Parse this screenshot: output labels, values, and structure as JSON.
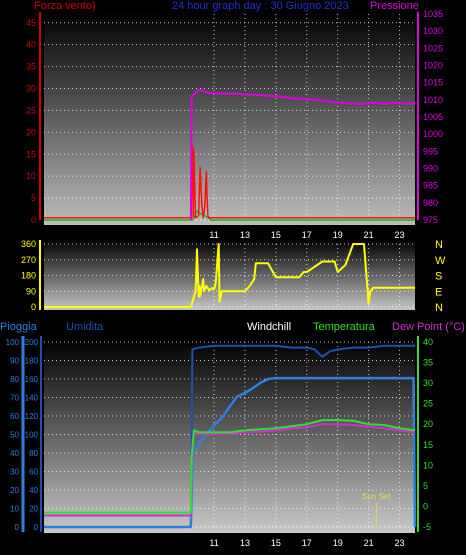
{
  "header": {
    "left_label": "Forza vento)",
    "center_label": "24 hour graph day : 30 Giugno 2023",
    "right_label": "Pressione"
  },
  "bottom_header": {
    "pioggia": "Pioggia",
    "umidita": "Umidita",
    "windchill": "Windchill",
    "temperatura": "Temperatura",
    "dewpoint": "Dew Point (°C)"
  },
  "annotations": {
    "sunset": "Sun Set"
  },
  "colors": {
    "wind": "#ff1010",
    "wind2": "#10c010",
    "pressure": "#e000e0",
    "direction": "#ffff00",
    "rain": "#2f7fe0",
    "humidity": "#1f4fb0",
    "temperature": "#30e030",
    "dewpoint": "#d030d0",
    "header_red": "#d00000",
    "header_blue": "#2030d0",
    "windchill_label": "#ffffff",
    "temp_label": "#30e030",
    "dew_label": "#d030d0"
  },
  "chart_data": [
    {
      "type": "line",
      "name": "wind_pressure",
      "x_ticks": [
        "11",
        "13",
        "15",
        "17",
        "19",
        "21",
        "23"
      ],
      "y_left_ticks": [
        "0",
        "5",
        "10",
        "15",
        "20",
        "25",
        "30",
        "35",
        "40",
        "45"
      ],
      "y_right_ticks": [
        "975",
        "980",
        "985",
        "990",
        "995",
        "1000",
        "1005",
        "1010",
        "1015",
        "1020",
        "1025",
        "1030",
        "1035"
      ],
      "y_left_range": [
        0,
        47
      ],
      "y_right_range": [
        975,
        1035
      ],
      "pressure": {
        "x": [
          9.5,
          9.55,
          9.8,
          10.0,
          10.3,
          10.7,
          11.5,
          12.5,
          13.5,
          14.5,
          15.5,
          16.5,
          17.5,
          18.5,
          19.5,
          20.5,
          21.0,
          21.5,
          22.0,
          22.5,
          23.0,
          23.5,
          24.0
        ],
        "y": [
          975,
          1011,
          1012,
          1013,
          1012.5,
          1012,
          1011.8,
          1011.8,
          1011.5,
          1011.2,
          1010.8,
          1010.3,
          1010,
          1009.5,
          1009,
          1008.8,
          1009,
          1009.2,
          1008.8,
          1009.2,
          1009,
          1008.9,
          1009
        ]
      },
      "wind": {
        "x": [
          0,
          9.5,
          9.6,
          9.65,
          9.7,
          9.8,
          10.0,
          10.1,
          10.2,
          10.3,
          10.4,
          10.5,
          10.55,
          10.6,
          10.65,
          10.8,
          24.0
        ],
        "y": [
          0.5,
          0.5,
          17,
          0.5,
          16,
          0.5,
          1,
          12,
          4,
          0.5,
          3,
          11,
          5,
          1,
          0.5,
          0.5,
          0.5
        ]
      },
      "gust": {
        "x": [
          0,
          9.6,
          9.9,
          10.1,
          10.4,
          10.6,
          10.8,
          24.0
        ],
        "y": [
          0,
          0,
          2,
          1.5,
          1,
          0.5,
          0,
          0
        ]
      }
    },
    {
      "type": "line",
      "name": "wind_direction",
      "x_ticks": [
        "11",
        "13",
        "15",
        "17",
        "19",
        "21",
        "23"
      ],
      "y_ticks": [
        "0",
        "90",
        "180",
        "270",
        "360"
      ],
      "y_range": [
        0,
        360
      ],
      "y_right_labels": [
        "N",
        "W",
        "S",
        "E",
        "N"
      ],
      "direction": {
        "x": [
          0,
          9.5,
          9.6,
          9.8,
          9.85,
          9.9,
          10.0,
          10.05,
          10.1,
          10.3,
          10.35,
          10.5,
          10.7,
          10.9,
          11.0,
          11.1,
          11.3,
          11.35,
          11.5,
          12.0,
          12.5,
          13.0,
          13.3,
          13.6,
          13.7,
          14.0,
          14.5,
          15.0,
          15.5,
          16.0,
          16.5,
          16.8,
          17.0,
          17.5,
          18.0,
          18.5,
          18.8,
          19.0,
          19.5,
          20.0,
          20.3,
          20.7,
          21.0,
          21.1,
          21.3,
          21.6,
          22.0,
          23.0,
          24.0
        ],
        "y": [
          0,
          0,
          30,
          90,
          200,
          330,
          60,
          120,
          60,
          160,
          90,
          120,
          95,
          110,
          100,
          130,
          360,
          30,
          90,
          90,
          90,
          90,
          120,
          160,
          250,
          250,
          250,
          170,
          170,
          170,
          170,
          200,
          200,
          230,
          260,
          260,
          260,
          200,
          240,
          360,
          360,
          360,
          20,
          90,
          110,
          110,
          110,
          110,
          110
        ]
      }
    },
    {
      "type": "line",
      "name": "rain_humidity_temp_dew",
      "x_ticks": [
        "11",
        "13",
        "15",
        "17",
        "19",
        "21",
        "23"
      ],
      "y_left_outer_ticks": [
        "0",
        "10",
        "20",
        "30",
        "40",
        "50",
        "60",
        "70",
        "80",
        "90",
        "100"
      ],
      "y_left_inner_ticks": [
        "0",
        "20",
        "40",
        "60",
        "80",
        "100",
        "120",
        "140",
        "160",
        "180",
        "200"
      ],
      "y_right_ticks": [
        "-5",
        "0",
        "5",
        "10",
        "15",
        "20",
        "25",
        "30",
        "35",
        "40"
      ],
      "humidity_range": [
        0,
        100
      ],
      "rain_range": [
        0,
        200
      ],
      "temp_range": [
        -5,
        40
      ],
      "humidity": {
        "x": [
          9.5,
          9.6,
          10.0,
          11.0,
          12.0,
          13.0,
          14.0,
          15.0,
          16.0,
          17.0,
          17.5,
          18.0,
          18.5,
          19.0,
          20.0,
          21.0,
          22.0,
          23.0,
          24.0
        ],
        "y": [
          0,
          96,
          97,
          98,
          98,
          98,
          98,
          98,
          97,
          97,
          96,
          92,
          95,
          96,
          97,
          97,
          98,
          98,
          98
        ]
      },
      "rain": {
        "x": [
          0,
          9.5,
          9.6,
          10.0,
          10.5,
          11.0,
          11.5,
          12.0,
          12.5,
          13.0,
          13.5,
          14.0,
          14.5,
          15.0,
          17.0,
          19.0,
          21.0,
          23.0,
          23.9,
          24.0
        ],
        "y": [
          0,
          0,
          80,
          90,
          100,
          110,
          118,
          130,
          141,
          145,
          150,
          156,
          160,
          161,
          161,
          161,
          161,
          161,
          161,
          0
        ]
      },
      "temperature": {
        "x": [
          0,
          9.5,
          9.55,
          9.7,
          10.0,
          11.0,
          12.0,
          13.0,
          14.0,
          15.0,
          16.0,
          17.0,
          18.0,
          19.0,
          20.0,
          21.0,
          22.0,
          23.0,
          24.0
        ],
        "y": [
          -1.5,
          -1.5,
          12,
          18.5,
          18,
          18,
          18,
          18.5,
          18.8,
          19,
          19.5,
          20,
          21,
          21,
          20.8,
          20,
          19.8,
          19,
          18.5
        ]
      },
      "dewpoint": {
        "x": [
          0,
          9.5,
          9.55,
          9.7,
          10.0,
          11.0,
          12.0,
          13.0,
          14.0,
          15.0,
          16.0,
          17.0,
          18.0,
          19.0,
          20.0,
          21.0,
          22.0,
          23.0,
          24.0
        ],
        "y": [
          -2.2,
          -2.2,
          12,
          18,
          17.6,
          17.6,
          17.6,
          18,
          18.2,
          18.5,
          19,
          19.2,
          20,
          20,
          19.8,
          19.4,
          19,
          18.5,
          18
        ]
      },
      "sunset_x": 21.5
    }
  ]
}
